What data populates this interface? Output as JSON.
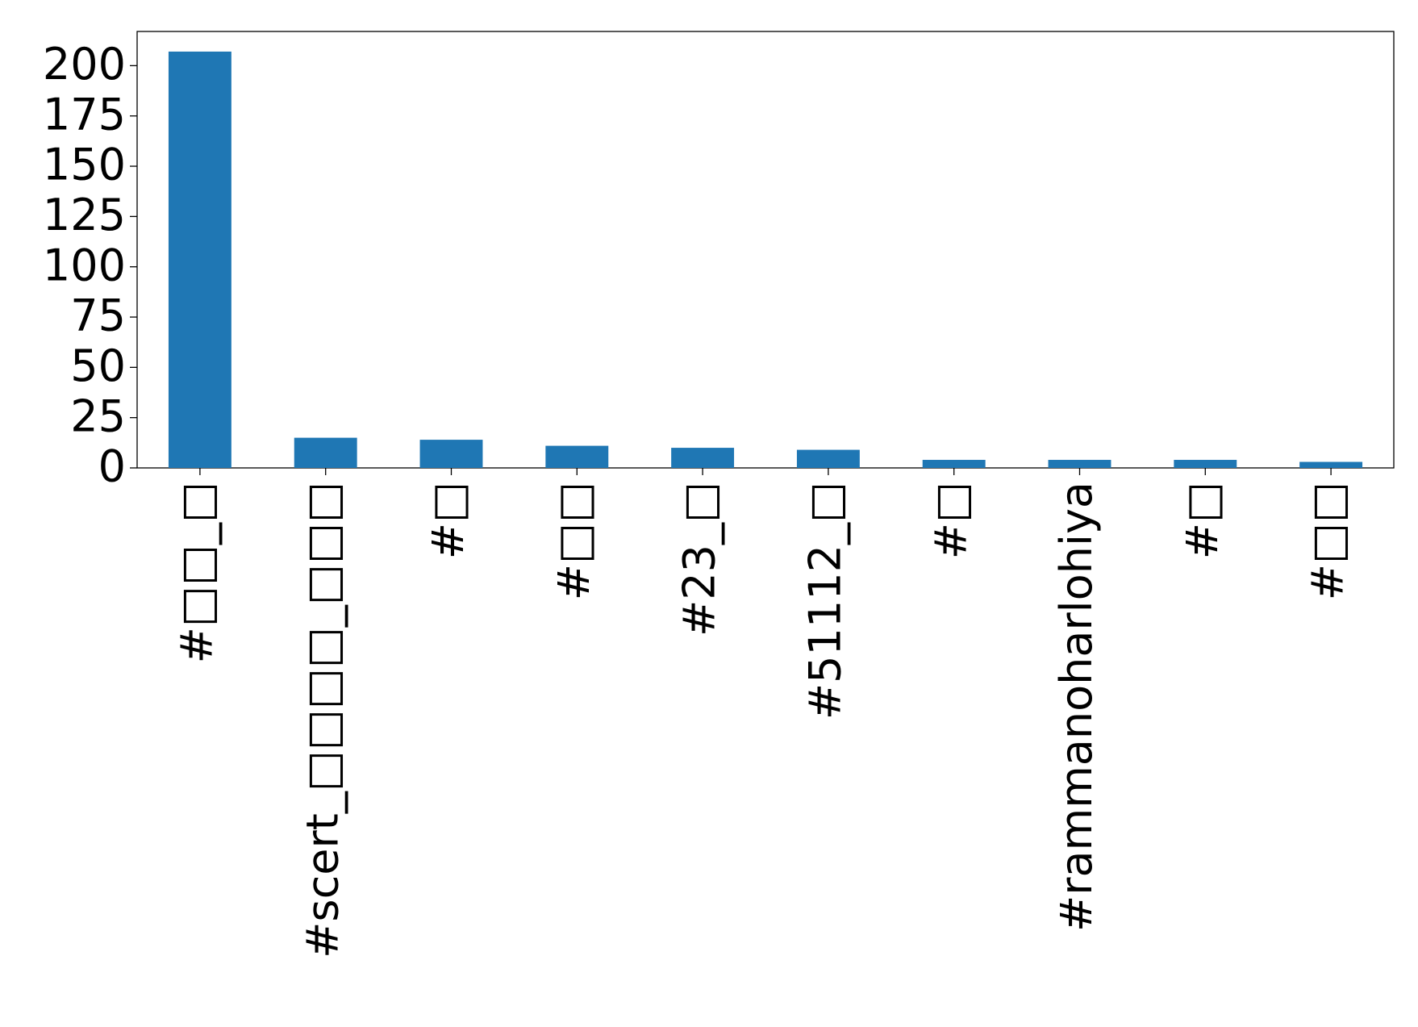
{
  "chart_data": {
    "type": "bar",
    "categories": [
      "#□□_□",
      "#scert_□□□□_□□□",
      "#□",
      "#□□",
      "#23_□",
      "#51112_□",
      "#□",
      "#rammanoharlohiya",
      "#□",
      "#□□"
    ],
    "values": [
      207,
      15,
      14,
      11,
      10,
      9,
      4,
      4,
      4,
      3
    ],
    "color": "#1f77b4",
    "ylim": [
      0,
      217
    ],
    "yticks": [
      0,
      25,
      50,
      75,
      100,
      125,
      150,
      175,
      200
    ],
    "grid": false
  }
}
